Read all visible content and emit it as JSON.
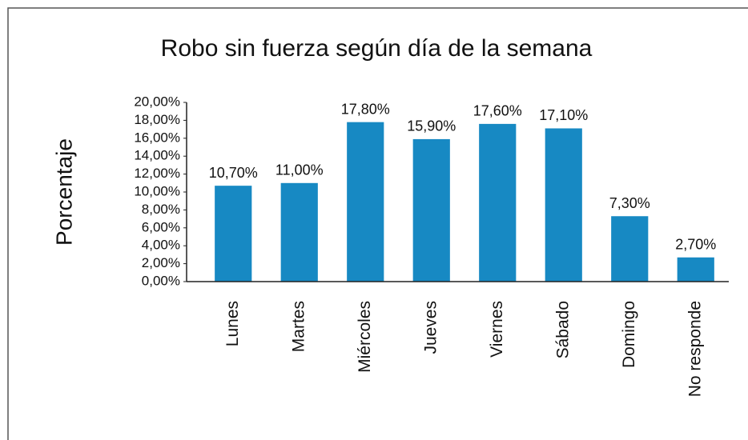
{
  "chart_data": {
    "type": "bar",
    "title": "Robo sin fuerza según día de la semana",
    "y_label": "Porcentaje",
    "categories": [
      "Lunes",
      "Martes",
      "Miércoles",
      "Jueves",
      "Viernes",
      "Sábado",
      "Domingo",
      "No responde"
    ],
    "values": [
      10.7,
      11.0,
      17.8,
      15.9,
      17.6,
      17.1,
      7.3,
      2.7
    ],
    "value_labels": [
      "10,70%",
      "11,00%",
      "17,80%",
      "15,90%",
      "17,60%",
      "17,10%",
      "7,30%",
      "2,70%"
    ],
    "color": "#1789c3",
    "ylim": [
      0,
      20
    ],
    "yticks": [
      {
        "value": 0,
        "label": "0,00%"
      },
      {
        "value": 2,
        "label": "2,00%"
      },
      {
        "value": 4,
        "label": "4,00%"
      },
      {
        "value": 6,
        "label": "6,00%"
      },
      {
        "value": 8,
        "label": "8,00%"
      },
      {
        "value": 10,
        "label": "10,00%"
      },
      {
        "value": 12,
        "label": "12,00%"
      },
      {
        "value": 14,
        "label": "14,00%"
      },
      {
        "value": 16,
        "label": "16,00%"
      },
      {
        "value": 18,
        "label": "18,00%"
      },
      {
        "value": 20,
        "label": "20,00%"
      }
    ],
    "grid": false
  }
}
